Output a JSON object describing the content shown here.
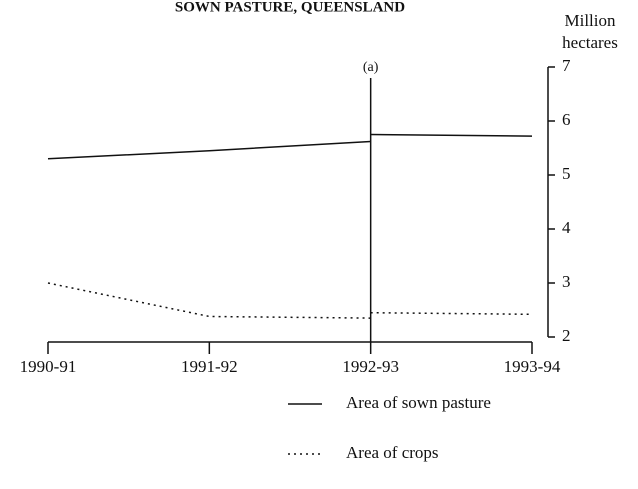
{
  "chart_data": {
    "type": "line",
    "title": "SOWN PASTURE, QUEENSLAND",
    "y_label_lines": [
      "Million",
      "hectares"
    ],
    "categories": [
      "1990-91",
      "1991-92",
      "1992-93",
      "1993-94"
    ],
    "annotation": {
      "text": "(a)",
      "at": "1992-93"
    },
    "series": [
      {
        "name": "Area of sown pasture",
        "color": "#111111",
        "style": "solid",
        "values": [
          5.3,
          5.45,
          5.62,
          5.72
        ],
        "break_value": 5.75
      },
      {
        "name": "Area of crops",
        "color": "#111111",
        "style": "dotted",
        "values": [
          3.0,
          2.38,
          2.35,
          2.42
        ],
        "break_value": 2.45
      }
    ],
    "ylim": [
      2,
      7
    ],
    "yticks": [
      2,
      3,
      4,
      5,
      6,
      7
    ],
    "y_axis_side": "right",
    "legend": "bottom"
  }
}
